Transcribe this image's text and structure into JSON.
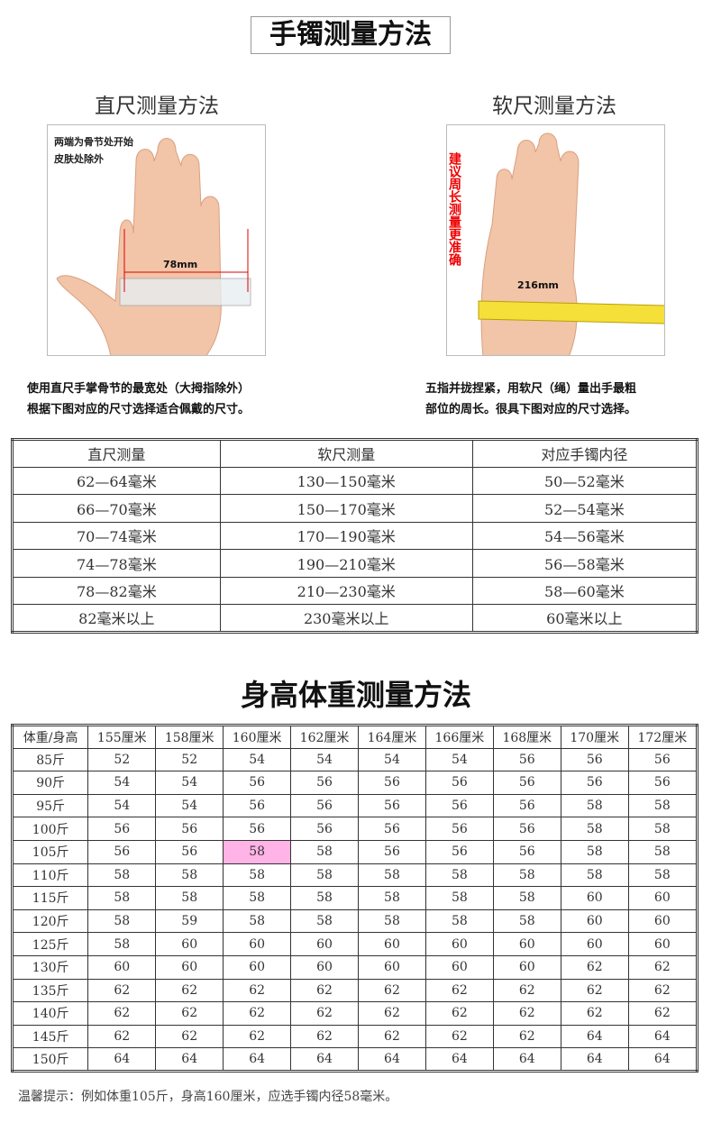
{
  "title": "手镯测量方法",
  "left": {
    "heading": "直尺测量方法",
    "note": "两端为骨节处开始\n皮肤处除外",
    "measure": "78mm",
    "caption1": "使用直尺手掌骨节的最宽处（大拇指除外）",
    "caption2": "根据下图对应的尺寸选择适合佩戴的尺寸。"
  },
  "right": {
    "heading": "软尺测量方法",
    "note": "建议周长测量更准确",
    "measure": "216mm",
    "caption1": "五指并拢捏紧，用软尺（绳）量出手最粗",
    "caption2": "部位的周长。很具下图对应的尺寸选择。"
  },
  "size_table": {
    "headers": [
      "直尺测量",
      "软尺测量",
      "对应手镯内径"
    ],
    "rows": [
      [
        "62—64毫米",
        "130—150毫米",
        "50—52毫米"
      ],
      [
        "66—70毫米",
        "150—170毫米",
        "52—54毫米"
      ],
      [
        "70—74毫米",
        "170—190毫米",
        "54—56毫米"
      ],
      [
        "74—78毫米",
        "190—210毫米",
        "56—58毫米"
      ],
      [
        "78—82毫米",
        "210—230毫米",
        "58—60毫米"
      ],
      [
        "82毫米以上",
        "230毫米以上",
        "60毫米以上"
      ]
    ]
  },
  "title2": "身高体重测量方法",
  "body_table": {
    "headers": [
      "体重/身高",
      "155厘米",
      "158厘米",
      "160厘米",
      "162厘米",
      "164厘米",
      "166厘米",
      "168厘米",
      "170厘米",
      "172厘米"
    ],
    "rows": [
      [
        "85斤",
        "52",
        "52",
        "54",
        "54",
        "54",
        "54",
        "56",
        "56",
        "56"
      ],
      [
        "90斤",
        "54",
        "54",
        "56",
        "56",
        "56",
        "56",
        "56",
        "56",
        "56"
      ],
      [
        "95斤",
        "54",
        "54",
        "56",
        "56",
        "56",
        "56",
        "56",
        "58",
        "58"
      ],
      [
        "100斤",
        "56",
        "56",
        "56",
        "56",
        "56",
        "56",
        "56",
        "58",
        "58"
      ],
      [
        "105斤",
        "56",
        "56",
        "58",
        "58",
        "56",
        "56",
        "56",
        "58",
        "58"
      ],
      [
        "110斤",
        "58",
        "58",
        "58",
        "58",
        "58",
        "58",
        "58",
        "58",
        "58"
      ],
      [
        "115斤",
        "58",
        "58",
        "58",
        "58",
        "58",
        "58",
        "58",
        "60",
        "60"
      ],
      [
        "120斤",
        "58",
        "59",
        "58",
        "58",
        "58",
        "58",
        "58",
        "60",
        "60"
      ],
      [
        "125斤",
        "58",
        "60",
        "60",
        "60",
        "60",
        "60",
        "60",
        "60",
        "60"
      ],
      [
        "130斤",
        "60",
        "60",
        "60",
        "60",
        "60",
        "60",
        "60",
        "62",
        "62"
      ],
      [
        "135斤",
        "62",
        "62",
        "62",
        "62",
        "62",
        "62",
        "62",
        "62",
        "62"
      ],
      [
        "140斤",
        "62",
        "62",
        "62",
        "62",
        "62",
        "62",
        "62",
        "62",
        "62"
      ],
      [
        "145斤",
        "62",
        "62",
        "62",
        "62",
        "62",
        "62",
        "62",
        "64",
        "64"
      ],
      [
        "150斤",
        "64",
        "64",
        "64",
        "64",
        "64",
        "64",
        "64",
        "64",
        "64"
      ]
    ],
    "highlight_color": "#ffb3e6"
  },
  "footer": "温馨提示：例如体重105斤，身高160厘米，应选手镯内径58毫米。"
}
